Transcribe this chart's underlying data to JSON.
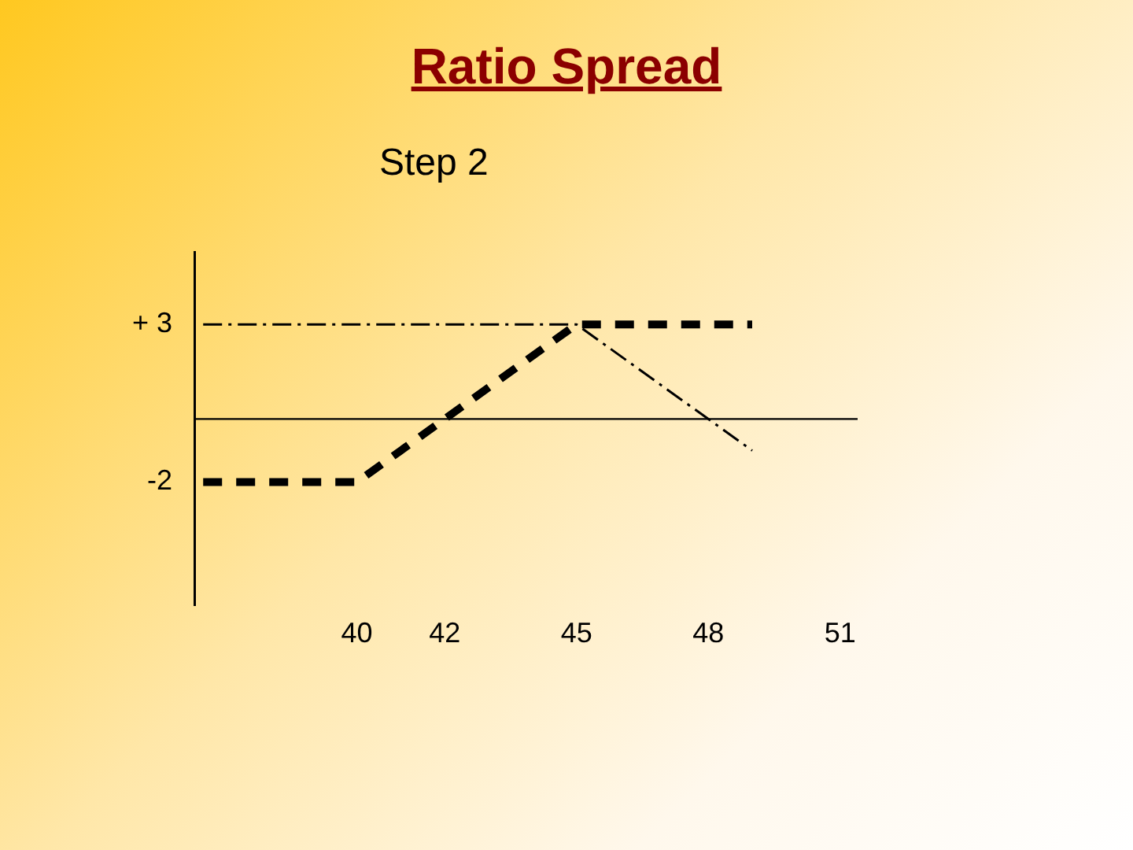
{
  "chart_data": {
    "type": "line",
    "title": "Ratio Spread",
    "subtitle": "Step 2",
    "xlim": [
      36.3,
      51.4
    ],
    "xticks": [
      40,
      42,
      45,
      48,
      51
    ],
    "ylim": [
      -5.9,
      5.3
    ],
    "yticks": [
      {
        "value": 3,
        "label": "+ 3"
      },
      -2
    ],
    "series": [
      {
        "color": "#000000",
        "line_style": "dashed",
        "x": [
          36.5,
          40,
          45,
          49
        ],
        "values": [
          -2,
          -2,
          3,
          3
        ]
      },
      {
        "color": "#000000",
        "line_style": "dashed",
        "x": [
          36.5,
          45,
          49
        ],
        "values": [
          3,
          3,
          -1
        ]
      }
    ],
    "ref_lines": [
      {
        "axis": "y",
        "value": 0,
        "color": "#000000"
      }
    ],
    "grid": false,
    "legend": false,
    "marker": "none"
  }
}
